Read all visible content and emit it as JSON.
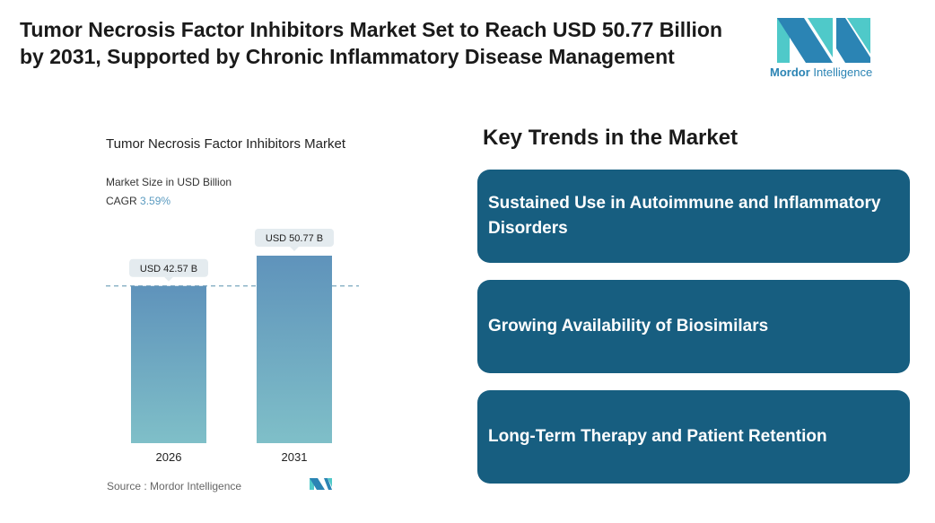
{
  "header": {
    "title": "Tumor Necrosis Factor Inhibitors Market Set to Reach USD 50.77 Billion by 2031, Supported by Chronic Inflammatory Disease Management"
  },
  "logo": {
    "brand_bold": "Mordor",
    "brand_light": "Intelligence",
    "colors": [
      "#2b84b4",
      "#4fc9c9"
    ]
  },
  "chart_data": {
    "type": "bar",
    "title": "Tumor Necrosis Factor Inhibitors Market",
    "subtitle": "Market Size in USD Billion",
    "cagr_label": "CAGR",
    "cagr_value": "3.59%",
    "categories": [
      "2026",
      "2031"
    ],
    "values": [
      42.57,
      50.77
    ],
    "data_labels": [
      "USD 42.57 B",
      "USD 50.77 B"
    ],
    "grid": false,
    "reference_line": "dashed at first bar value",
    "bar_colors": {
      "top": "#5f93bb",
      "bottom": "#7fbfc8"
    },
    "source": "Source :  Mordor Intelligence"
  },
  "trends": {
    "heading": "Key Trends in the Market",
    "items": [
      "Sustained Use in Autoimmune and Inflammatory Disorders",
      "Growing Availability of Biosimilars",
      "Long-Term Therapy and Patient Retention"
    ],
    "card_color": "#175e80"
  }
}
